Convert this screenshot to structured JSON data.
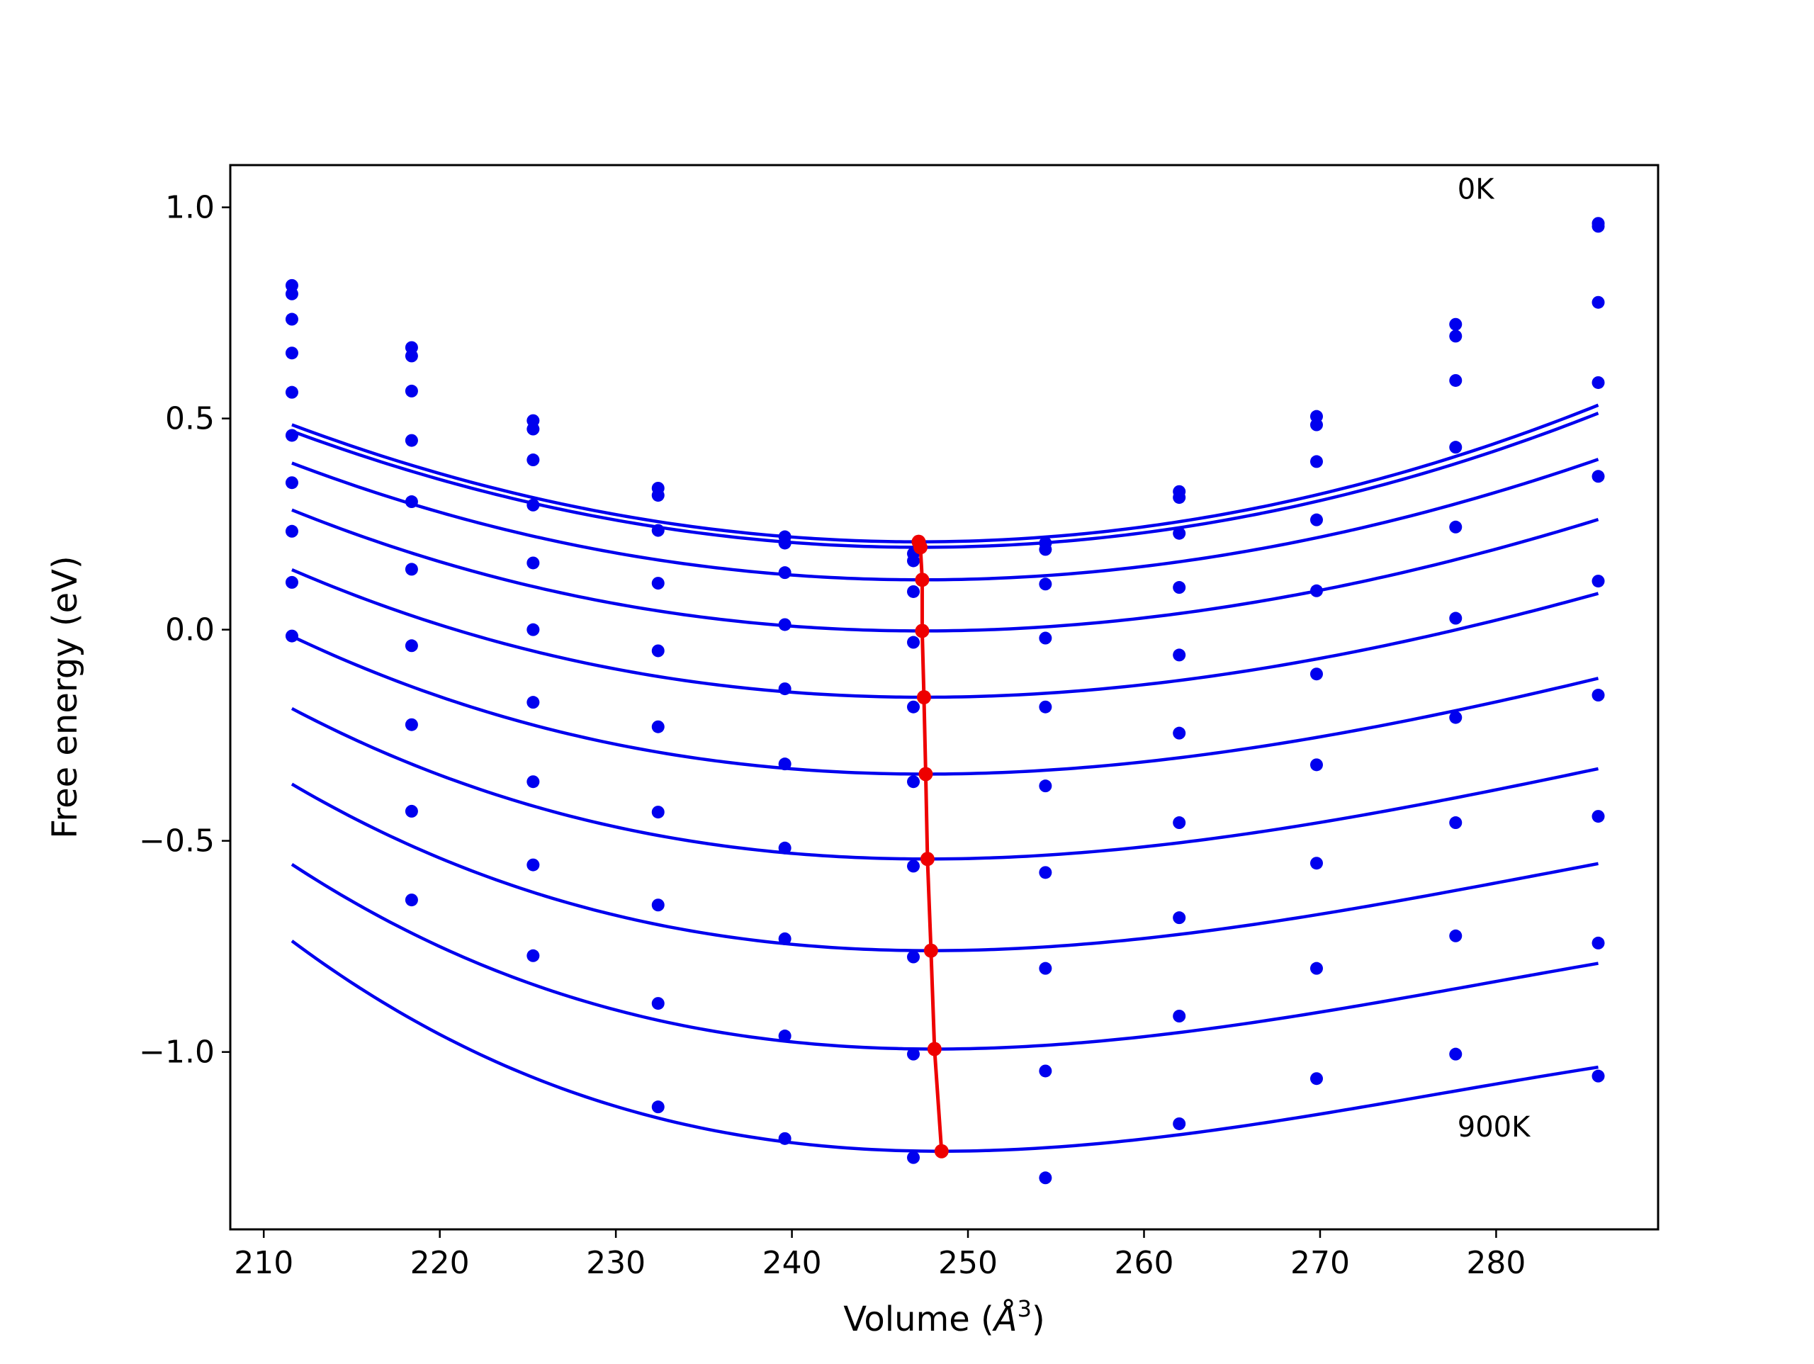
{
  "chart_data": {
    "type": "scatter",
    "title": "",
    "xlabel": "Volume (",
    "xlabel_symbol": "Å",
    "xlabel_exponent": "3",
    "xlabel_suffix": ")",
    "ylabel": "Free energy (eV)",
    "xlim": [
      208.1,
      289.2
    ],
    "ylim": [
      -1.42,
      1.1
    ],
    "x_ticks": [
      210,
      220,
      230,
      240,
      250,
      260,
      270,
      280
    ],
    "x_tick_labels": [
      "210",
      "220",
      "230",
      "240",
      "250",
      "260",
      "270",
      "280"
    ],
    "y_ticks": [
      1.0,
      0.5,
      0.0,
      -0.5,
      -1.0
    ],
    "y_tick_labels": [
      "1.0",
      "0.5",
      "0.0",
      "−0.5",
      "−1.0"
    ],
    "grid": false,
    "legend": "none",
    "annotations": [
      {
        "text": "0K",
        "x": 277.8,
        "y": 1.02
      },
      {
        "text": "900K",
        "x": 277.8,
        "y": -1.2
      }
    ],
    "volumes": [
      211.6,
      218.4,
      225.3,
      232.4,
      239.6,
      246.9,
      254.4,
      262.0,
      269.8,
      277.7,
      285.8
    ],
    "series": [
      {
        "points": [
          0.815,
          0.668,
          0.495,
          0.335,
          0.22,
          0.18,
          0.205,
          0.327,
          0.505,
          0.723,
          0.962
        ],
        "fit": {
          "v0": 247.2,
          "e0": 0.208,
          "a": 0.000218,
          "c": -2e-08
        }
      },
      {
        "points": [
          0.795,
          0.648,
          0.475,
          0.318,
          0.205,
          0.163,
          0.19,
          0.313,
          0.485,
          0.695,
          0.955
        ],
        "fit": {
          "v0": 247.3,
          "e0": 0.195,
          "a": 0.000215,
          "c": -2e-08
        }
      },
      {
        "points": [
          0.735,
          0.565,
          0.402,
          0.235,
          0.135,
          0.09,
          0.108,
          0.228,
          0.398,
          0.59,
          0.775
        ],
        "fit": {
          "v0": 247.4,
          "e0": 0.118,
          "a": 0.000205,
          "c": -3e-07
        }
      },
      {
        "points": [
          0.655,
          0.448,
          0.295,
          0.11,
          0.012,
          -0.03,
          -0.02,
          0.1,
          0.26,
          0.432,
          0.585
        ],
        "fit": {
          "v0": 247.4,
          "e0": -0.003,
          "a": 0.000202,
          "c": -6e-07
        }
      },
      {
        "points": [
          0.562,
          0.303,
          0.158,
          -0.05,
          -0.14,
          -0.183,
          -0.183,
          -0.06,
          0.092,
          0.243,
          0.363
        ],
        "fit": {
          "v0": 247.5,
          "e0": -0.16,
          "a": 0.000202,
          "c": -9e-07
        }
      },
      {
        "points": [
          0.46,
          0.143,
          0.0,
          -0.23,
          -0.318,
          -0.36,
          -0.37,
          -0.245,
          -0.105,
          0.027,
          0.115
        ],
        "fit": {
          "v0": 247.6,
          "e0": -0.342,
          "a": 0.000205,
          "c": -1.3e-06
        }
      },
      {
        "points": [
          0.348,
          -0.038,
          -0.172,
          -0.432,
          -0.517,
          -0.56,
          -0.575,
          -0.457,
          -0.32,
          -0.208,
          -0.155
        ],
        "fit": {
          "v0": 247.7,
          "e0": -0.543,
          "a": 0.000212,
          "c": -1.7e-06
        }
      },
      {
        "points": [
          0.233,
          -0.225,
          -0.36,
          -0.652,
          -0.732,
          -0.775,
          -0.802,
          -0.682,
          -0.553,
          -0.457,
          -0.442
        ],
        "fit": {
          "v0": 247.9,
          "e0": -0.76,
          "a": 0.000223,
          "c": -2.1e-06
        }
      },
      {
        "points": [
          0.112,
          -0.43,
          -0.557,
          -0.885,
          -0.962,
          -1.005,
          -1.045,
          -0.915,
          -0.802,
          -0.725,
          -0.742
        ],
        "fit": {
          "v0": 248.1,
          "e0": -0.993,
          "a": 0.000237,
          "c": -2.5e-06
        }
      },
      {
        "points": [
          -0.015,
          -0.64,
          -0.772,
          -1.13,
          -1.205,
          -1.25,
          -1.298,
          -1.17,
          -1.063,
          -1.005,
          -1.057
        ],
        "fit": {
          "v0": 248.5,
          "e0": -1.235,
          "a": 0.000255,
          "c": -3e-06
        }
      }
    ],
    "minimum_path": {
      "x": [
        247.2,
        247.3,
        247.4,
        247.4,
        247.5,
        247.6,
        247.7,
        247.9,
        248.1,
        248.5
      ],
      "y": [
        0.208,
        0.195,
        0.118,
        -0.003,
        -0.16,
        -0.342,
        -0.543,
        -0.76,
        -0.993,
        -1.235
      ]
    },
    "colors": {
      "series": "#0000ee",
      "minimum_path": "#ee0000",
      "axes": "#000000"
    }
  }
}
